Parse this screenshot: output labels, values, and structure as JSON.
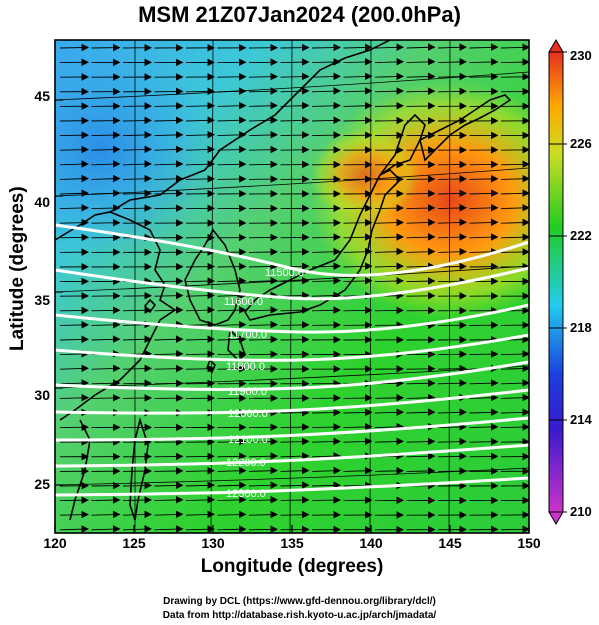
{
  "title": "MSM 21Z07Jan2024 (200.0hPa)",
  "chart_data": {
    "type": "heatmap",
    "title": "MSM 21Z07Jan2024 (200.0hPa)",
    "xlabel": "Longitude (degrees)",
    "ylabel": "Latitude  (degrees)",
    "xlim": [
      120,
      150
    ],
    "ylim": [
      22.4,
      47.6
    ],
    "x_ticks": [
      "120",
      "125",
      "130",
      "135",
      "140",
      "145",
      "150"
    ],
    "y_ticks": [
      "25",
      "30",
      "35",
      "40",
      "45"
    ],
    "colorbar": {
      "min": 210,
      "max": 230,
      "ticks": [
        "210",
        "214",
        "218",
        "222",
        "226",
        "230"
      ],
      "colors": [
        "#cc33cc",
        "#1a1acc",
        "#22ccee",
        "#22cc22",
        "#ffcc00",
        "#e83020"
      ]
    },
    "contour_labels": [
      "11500.0",
      "11600.0",
      "11700.0",
      "11800.0",
      "11900.0",
      "12000.0",
      "12100.0",
      "12200.0",
      "12300.0"
    ],
    "contour_color": "#ffffff",
    "field_description_colors": {
      "ocean_land_low": "#33aaee",
      "mid": "#22cc22",
      "high": "#ff8800",
      "peak": "#e84010"
    },
    "wind_vectors": "westerly arrows"
  },
  "credits": [
    "Drawing by DCL (https://www.gfd-dennou.org/library/dcl/)",
    "Data from http://database.rish.kyoto-u.ac.jp/arch/jmadata/"
  ]
}
